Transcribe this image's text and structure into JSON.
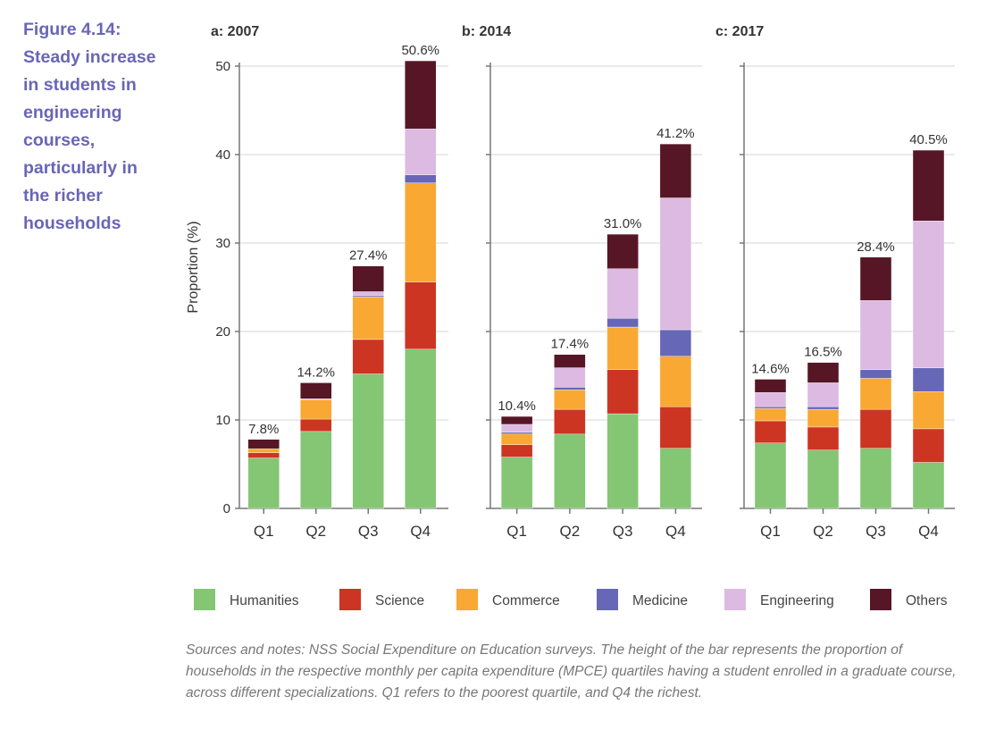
{
  "figure": {
    "label": "Figure 4.14:",
    "title": "Steady increase in students in engineering courses, particularly in the richer households"
  },
  "notes": "Sources and notes: NSS Social Expenditure on Education surveys. The height of the bar represents the proportion of households in the respective monthly per capita expenditure (MPCE) quartiles having a  student enrolled in a graduate course, across different specializations. Q1 refers to the poorest quartile, and Q4 the richest.",
  "colors": {
    "Humanities": "#84c673",
    "Science": "#cc3522",
    "Commerce": "#f9a834",
    "Medicine": "#6767b8",
    "Engineering": "#dcbae2",
    "Others": "#561626"
  },
  "chart_data": [
    {
      "type": "bar",
      "stacked": true,
      "title": "a: 2007",
      "ylabel": "Proportion (%)",
      "ylim": [
        0,
        50
      ],
      "yticks": [
        0,
        10,
        20,
        30,
        40,
        50
      ],
      "grid": true,
      "categories": [
        "Q1",
        "Q2",
        "Q3",
        "Q4"
      ],
      "totals_labels": [
        "7.8%",
        "14.2%",
        "27.4%",
        "50.6%"
      ],
      "series": [
        {
          "name": "Humanities",
          "values": [
            5.7,
            8.7,
            15.2,
            18.0
          ]
        },
        {
          "name": "Science",
          "values": [
            0.6,
            1.4,
            3.9,
            7.6
          ]
        },
        {
          "name": "Commerce",
          "values": [
            0.45,
            2.2,
            4.8,
            11.2
          ]
        },
        {
          "name": "Medicine",
          "values": [
            0,
            0,
            0.15,
            0.9
          ]
        },
        {
          "name": "Engineering",
          "values": [
            0,
            0.1,
            0.45,
            5.2
          ]
        },
        {
          "name": "Others",
          "values": [
            1.05,
            1.8,
            2.9,
            7.7
          ]
        }
      ]
    },
    {
      "type": "bar",
      "stacked": true,
      "title": "b: 2014",
      "ylim": [
        0,
        50
      ],
      "grid": true,
      "categories": [
        "Q1",
        "Q2",
        "Q3",
        "Q4"
      ],
      "totals_labels": [
        "10.4%",
        "17.4%",
        "31.0%",
        "41.2%"
      ],
      "series": [
        {
          "name": "Humanities",
          "values": [
            5.8,
            8.4,
            10.7,
            6.8
          ]
        },
        {
          "name": "Science",
          "values": [
            1.4,
            2.8,
            5.0,
            4.7
          ]
        },
        {
          "name": "Commerce",
          "values": [
            1.2,
            2.2,
            4.8,
            5.7
          ]
        },
        {
          "name": "Medicine",
          "values": [
            0.2,
            0.3,
            1.0,
            3.0
          ]
        },
        {
          "name": "Engineering",
          "values": [
            0.9,
            2.2,
            5.6,
            14.9
          ]
        },
        {
          "name": "Others",
          "values": [
            0.9,
            1.5,
            3.9,
            6.1
          ]
        }
      ]
    },
    {
      "type": "bar",
      "stacked": true,
      "title": "c: 2017",
      "ylim": [
        0,
        50
      ],
      "grid": true,
      "categories": [
        "Q1",
        "Q2",
        "Q3",
        "Q4"
      ],
      "totals_labels": [
        "14.6%",
        "16.5%",
        "28.4%",
        "40.5%"
      ],
      "series": [
        {
          "name": "Humanities",
          "values": [
            7.4,
            6.6,
            6.8,
            5.2
          ]
        },
        {
          "name": "Science",
          "values": [
            2.5,
            2.6,
            4.4,
            3.8
          ]
        },
        {
          "name": "Commerce",
          "values": [
            1.4,
            2.0,
            3.5,
            4.2
          ]
        },
        {
          "name": "Medicine",
          "values": [
            0.2,
            0.3,
            1.0,
            2.7
          ]
        },
        {
          "name": "Engineering",
          "values": [
            1.6,
            2.7,
            7.8,
            16.6
          ]
        },
        {
          "name": "Others",
          "values": [
            1.5,
            2.3,
            4.9,
            8.0
          ]
        }
      ]
    }
  ],
  "legend": [
    "Humanities",
    "Science",
    "Commerce",
    "Medicine",
    "Engineering",
    "Others"
  ]
}
